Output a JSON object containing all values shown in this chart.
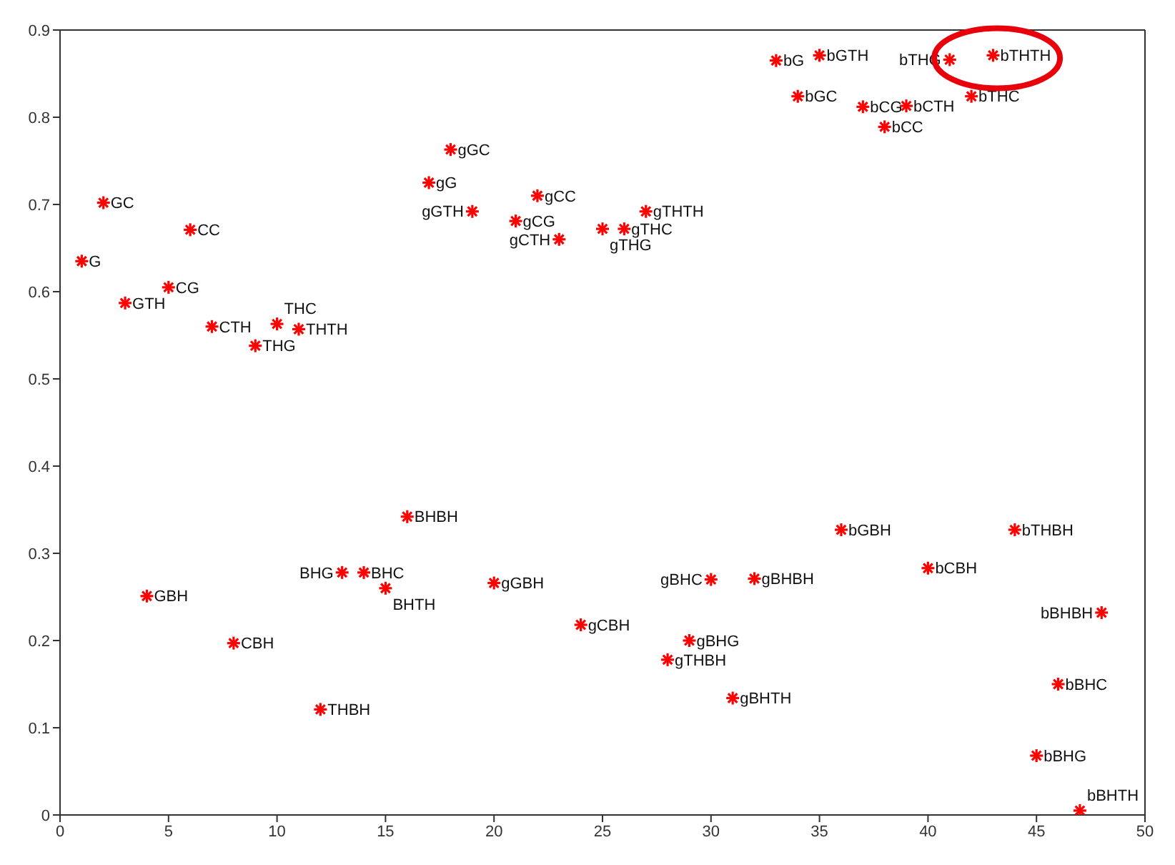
{
  "chart_data": {
    "type": "scatter",
    "marker": "cross",
    "grid": false,
    "legend": false,
    "xlim": [
      0,
      50
    ],
    "xticks": [
      0,
      5,
      10,
      15,
      20,
      25,
      30,
      35,
      40,
      45,
      50
    ],
    "ylim": [
      0,
      0.9
    ],
    "yticks": [
      0,
      0.1,
      0.2,
      0.3,
      0.4,
      0.5,
      0.6,
      0.7,
      0.8,
      0.9
    ],
    "series": [
      {
        "color": "#ff0000",
        "x": [
          1,
          2,
          3,
          4,
          5,
          6,
          7,
          8,
          9,
          10,
          11,
          12,
          13,
          14,
          15,
          16,
          17,
          18,
          19,
          20,
          21,
          22,
          23,
          24,
          25,
          26,
          27,
          28,
          29,
          30,
          31,
          32,
          33,
          34,
          35,
          36,
          37,
          38,
          39,
          40,
          41,
          42,
          43,
          44,
          45,
          46,
          47,
          48
        ],
        "values": [
          0.635,
          0.702,
          0.587,
          0.251,
          0.605,
          0.671,
          0.56,
          0.197,
          0.538,
          0.563,
          0.557,
          0.121,
          0.278,
          0.278,
          0.26,
          0.342,
          0.725,
          0.763,
          0.692,
          0.266,
          0.681,
          0.71,
          0.66,
          0.218,
          0.672,
          0.672,
          0.692,
          0.178,
          0.2,
          0.27,
          0.134,
          0.271,
          0.865,
          0.824,
          0.871,
          0.327,
          0.812,
          0.789,
          0.813,
          0.283,
          0.866,
          0.824,
          0.871,
          0.327,
          0.068,
          0.15,
          0.005,
          0.232
        ]
      }
    ],
    "annotations": [
      {
        "text": "G",
        "x": 1,
        "y": 0.635
      },
      {
        "text": "GC",
        "x": 2,
        "y": 0.702
      },
      {
        "text": "GTH",
        "x": 3,
        "y": 0.587
      },
      {
        "text": "GBH",
        "x": 4,
        "y": 0.251
      },
      {
        "text": "CG",
        "x": 5,
        "y": 0.605
      },
      {
        "text": "CC",
        "x": 6,
        "y": 0.671
      },
      {
        "text": "CTH",
        "x": 7,
        "y": 0.56
      },
      {
        "text": "CBH",
        "x": 8,
        "y": 0.197
      },
      {
        "text": "THG",
        "x": 9,
        "y": 0.538
      },
      {
        "text": "THC",
        "x": 10,
        "y": 0.563
      },
      {
        "text": "THTH",
        "x": 11,
        "y": 0.557
      },
      {
        "text": "THBH",
        "x": 12,
        "y": 0.121
      },
      {
        "text": "BHG",
        "x": 13,
        "y": 0.278
      },
      {
        "text": "BHC",
        "x": 14,
        "y": 0.278
      },
      {
        "text": "BHTH",
        "x": 15,
        "y": 0.26
      },
      {
        "text": "BHBH",
        "x": 16,
        "y": 0.342
      },
      {
        "text": "gG",
        "x": 17,
        "y": 0.725
      },
      {
        "text": "gGC",
        "x": 18,
        "y": 0.763
      },
      {
        "text": "gGTH",
        "x": 19,
        "y": 0.692
      },
      {
        "text": "gGBH",
        "x": 20,
        "y": 0.266
      },
      {
        "text": "gCG",
        "x": 21,
        "y": 0.681
      },
      {
        "text": "gCC",
        "x": 22,
        "y": 0.71
      },
      {
        "text": "gCTH",
        "x": 23,
        "y": 0.66
      },
      {
        "text": "gCBH",
        "x": 24,
        "y": 0.218
      },
      {
        "text": "gTHG",
        "x": 25,
        "y": 0.672
      },
      {
        "text": "gTHC",
        "x": 26,
        "y": 0.672
      },
      {
        "text": "gTHTH",
        "x": 27,
        "y": 0.692
      },
      {
        "text": "gTHBH",
        "x": 28,
        "y": 0.178
      },
      {
        "text": "gBHG",
        "x": 29,
        "y": 0.2
      },
      {
        "text": "gBHC",
        "x": 30,
        "y": 0.27
      },
      {
        "text": "gBHTH",
        "x": 31,
        "y": 0.134
      },
      {
        "text": "gBHBH",
        "x": 32,
        "y": 0.271
      },
      {
        "text": "bG",
        "x": 33,
        "y": 0.865
      },
      {
        "text": "bGC",
        "x": 34,
        "y": 0.824
      },
      {
        "text": "bGTH",
        "x": 35,
        "y": 0.871
      },
      {
        "text": "bGBH",
        "x": 36,
        "y": 0.327
      },
      {
        "text": "bCG",
        "x": 37,
        "y": 0.812
      },
      {
        "text": "bCC",
        "x": 38,
        "y": 0.789
      },
      {
        "text": "bCTH",
        "x": 39,
        "y": 0.813
      },
      {
        "text": "bCBH",
        "x": 40,
        "y": 0.283
      },
      {
        "text": "bTHG",
        "x": 41,
        "y": 0.866
      },
      {
        "text": "bTHC",
        "x": 42,
        "y": 0.824
      },
      {
        "text": "bTHTH",
        "x": 43,
        "y": 0.871
      },
      {
        "text": "bTHBH",
        "x": 44,
        "y": 0.327
      },
      {
        "text": "bBHG",
        "x": 45,
        "y": 0.068
      },
      {
        "text": "bBHC",
        "x": 46,
        "y": 0.15
      },
      {
        "text": "bBHTH",
        "x": 47,
        "y": 0.005
      },
      {
        "text": "bBHBH",
        "x": 48,
        "y": 0.232
      }
    ]
  }
}
